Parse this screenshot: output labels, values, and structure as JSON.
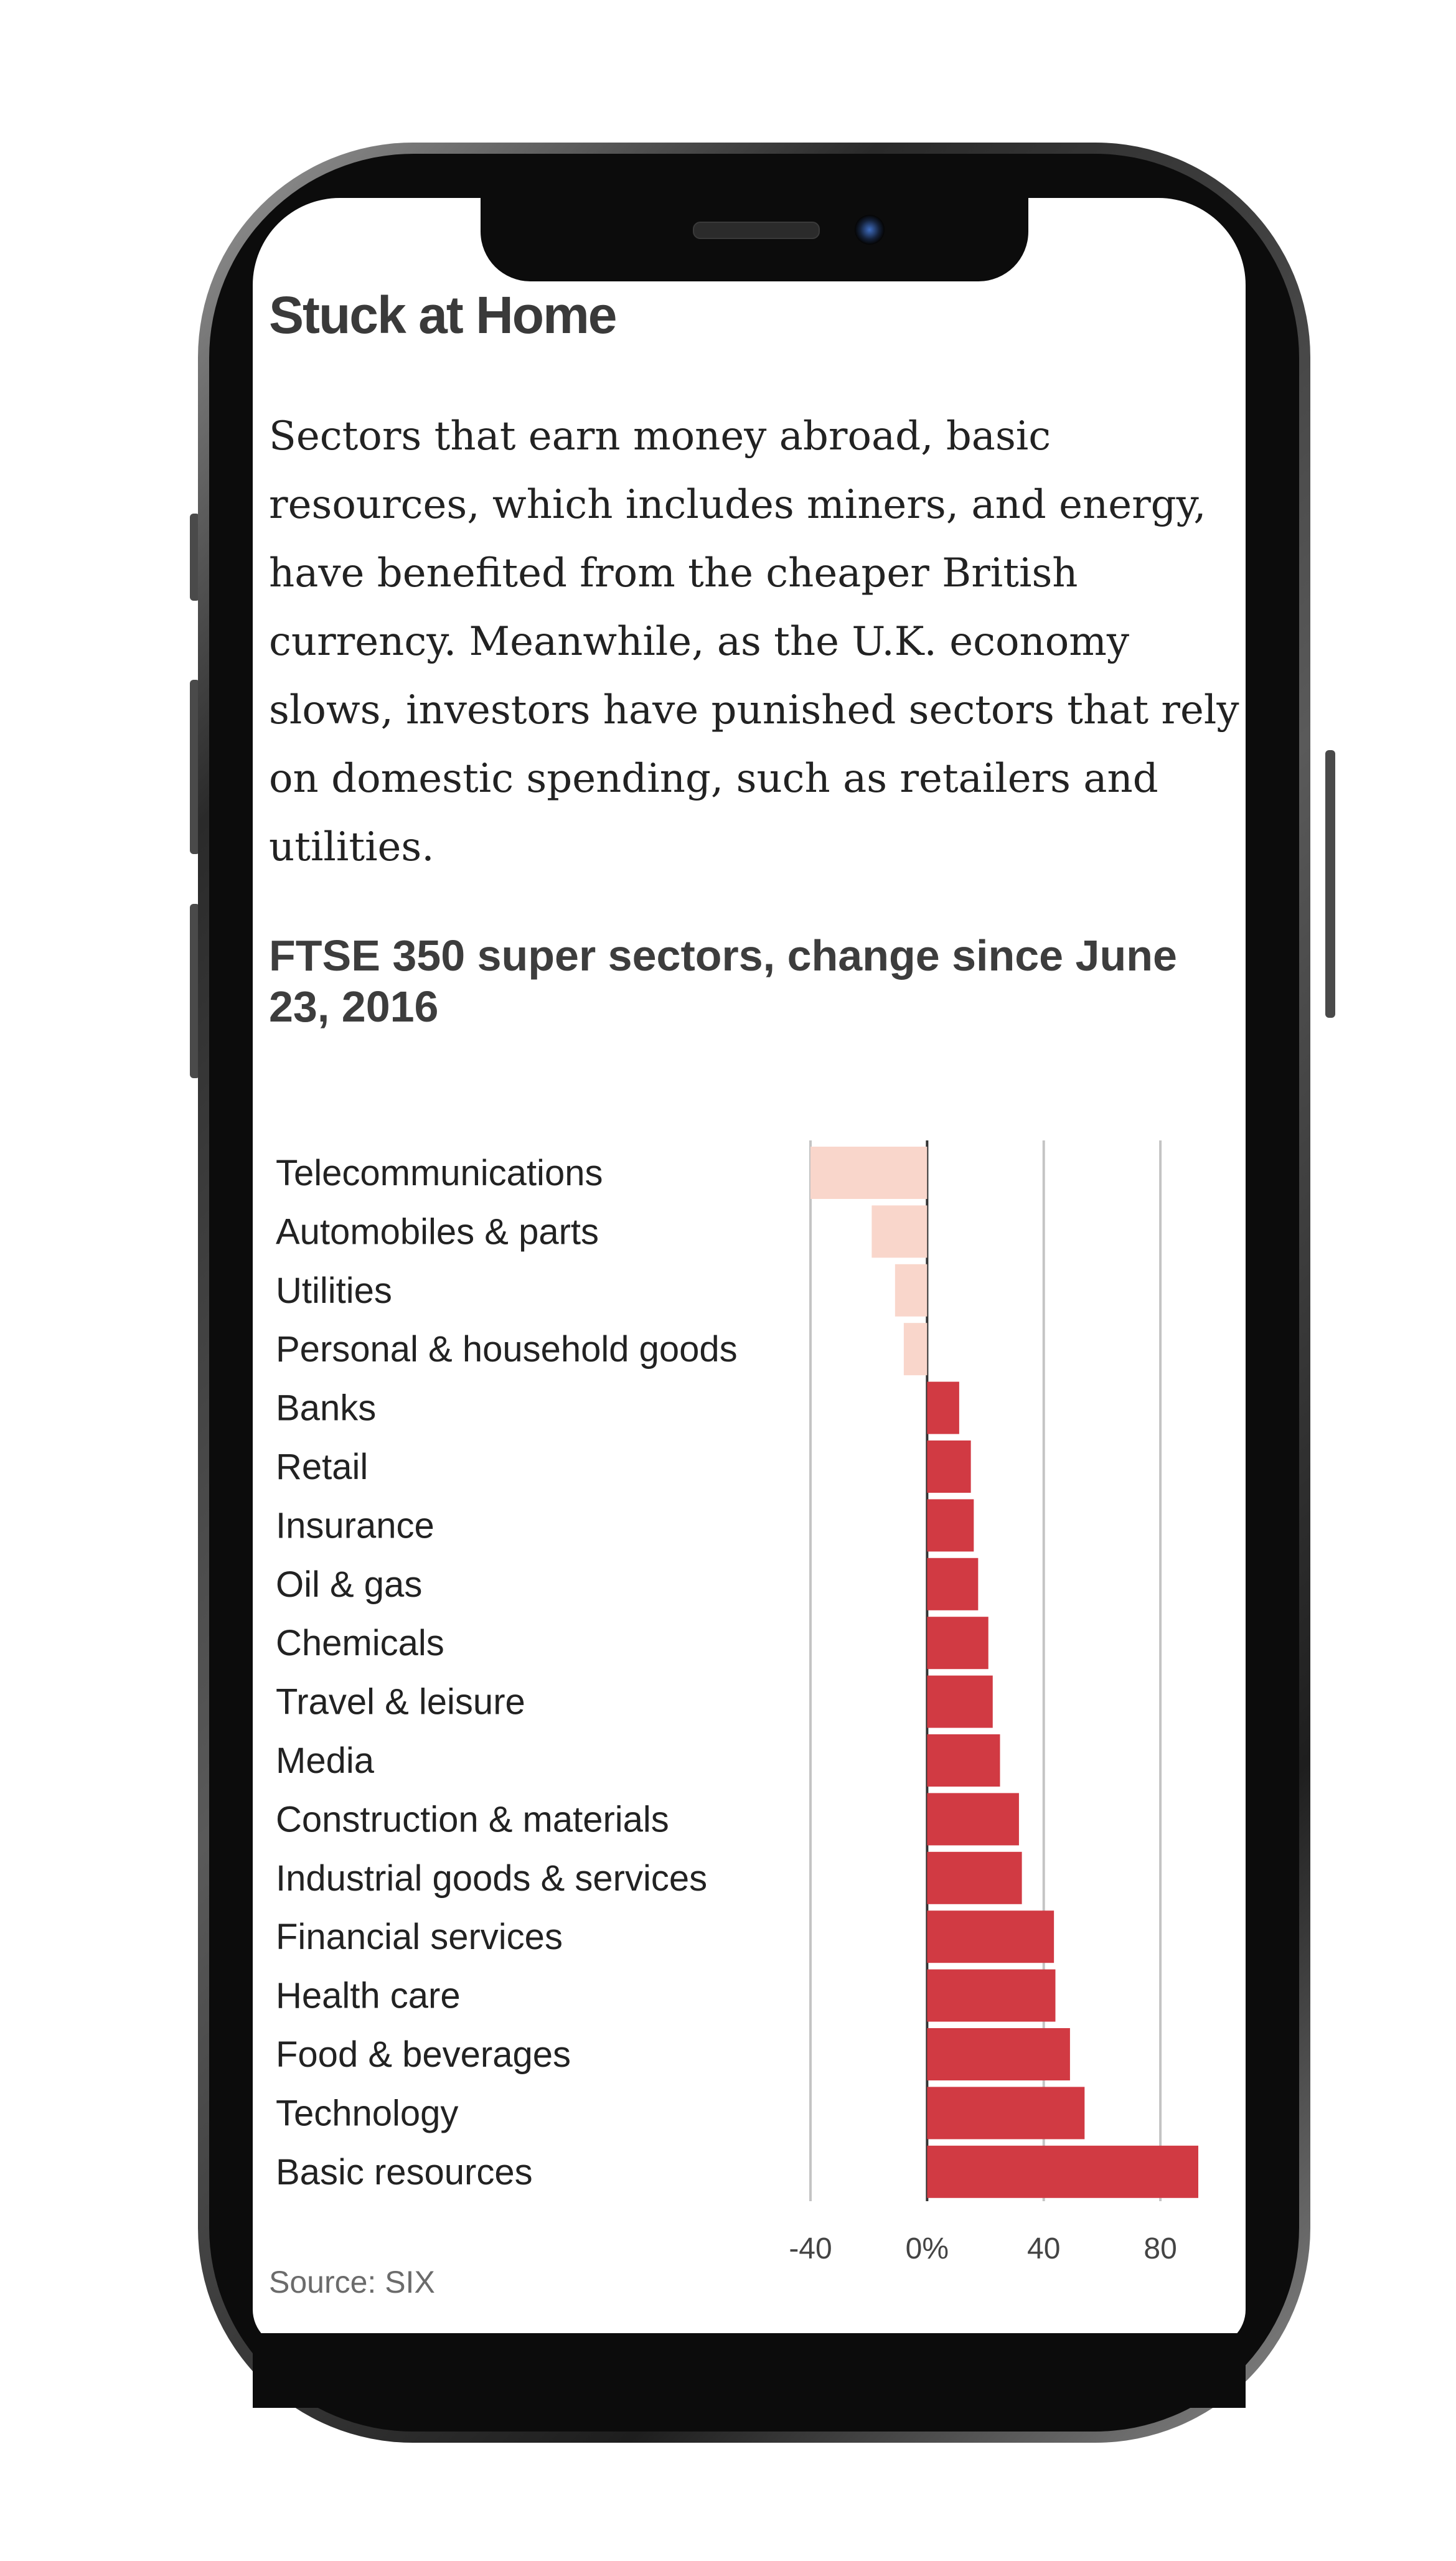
{
  "article": {
    "title": "Stuck at Home",
    "body": "Sectors that earn money abroad, basic resources, which includes miners, and energy, have benefited from the cheaper British currency. Meanwhile, as the U.K. economy slows, investors have punished sectors that rely on domestic spending, such as retailers and utilities."
  },
  "chart_data": {
    "type": "bar",
    "orientation": "horizontal",
    "title": "FTSE 350 super sectors, change since June 23, 2016",
    "xlabel": "",
    "ylabel": "",
    "xlim": [
      -40,
      93
    ],
    "ticks": [
      {
        "value": -40,
        "label": "-40"
      },
      {
        "value": 0,
        "label": "0%"
      },
      {
        "value": 40,
        "label": "40"
      },
      {
        "value": 80,
        "label": "80"
      }
    ],
    "grid": true,
    "categories": [
      "Telecommunications",
      "Automobiles & parts",
      "Utilities",
      "Personal & household goods",
      "Banks",
      "Retail",
      "Insurance",
      "Oil & gas",
      "Chemicals",
      "Travel & leisure",
      "Media",
      "Construction & materials",
      "Industrial goods & services",
      "Financial services",
      "Health care",
      "Food & beverages",
      "Technology",
      "Basic resources"
    ],
    "values": [
      -40,
      -19,
      -11,
      -8,
      11,
      15,
      16,
      17.5,
      21,
      22.5,
      25,
      31.5,
      32.5,
      43.5,
      44,
      49,
      54,
      93
    ],
    "colors": {
      "negative": "#f9d6cb",
      "positive": "#d13a43",
      "grid": "#c4c4c4",
      "axis": "#333333"
    }
  },
  "source": "Source: SIX"
}
